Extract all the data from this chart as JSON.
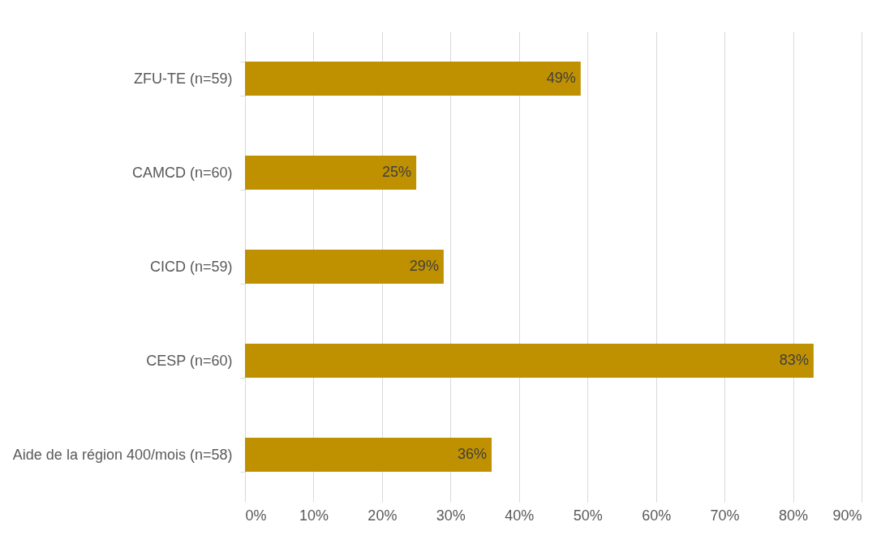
{
  "chart_data": {
    "type": "bar",
    "orientation": "horizontal",
    "categories": [
      "ZFU-TE (n=59)",
      "CAMCD (n=60)",
      "CICD (n=59)",
      "CESP (n=60)",
      "Aide de la région 400/mois (n=58)"
    ],
    "values": [
      49,
      25,
      29,
      83,
      36
    ],
    "value_labels": [
      "49%",
      "25%",
      "29%",
      "83%",
      "36%"
    ],
    "color": "#bf9000",
    "xlim": [
      0,
      90
    ],
    "xticks": [
      {
        "value": 0,
        "label": "0%"
      },
      {
        "value": 10,
        "label": "10%"
      },
      {
        "value": 20,
        "label": "20%"
      },
      {
        "value": 30,
        "label": "30%"
      },
      {
        "value": 40,
        "label": "40%"
      },
      {
        "value": 50,
        "label": "50%"
      },
      {
        "value": 60,
        "label": "60%"
      },
      {
        "value": 70,
        "label": "70%"
      },
      {
        "value": 80,
        "label": "80%"
      },
      {
        "value": 90,
        "label": "90%"
      }
    ],
    "grid": "x"
  }
}
